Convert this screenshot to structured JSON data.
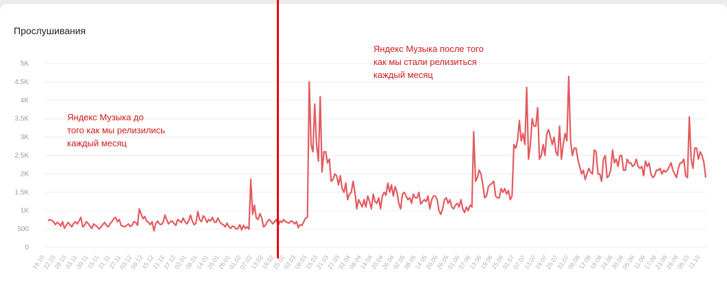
{
  "chart_data": {
    "type": "line",
    "title": "Прослушивания",
    "xlabel": "",
    "ylabel": "",
    "ylim": [
      0,
      5000
    ],
    "y_ticks": [
      0,
      500,
      1000,
      1500,
      2000,
      2500,
      3000,
      3500,
      4000,
      4500,
      5000
    ],
    "y_tick_labels": [
      "0",
      "500",
      "1K",
      "1.5K",
      "2K",
      "2.5K",
      "3K",
      "3.5K",
      "4K",
      "4.5K",
      "5K"
    ],
    "grid": true,
    "x_tick_labels": [
      "16.10",
      "22.10",
      "28.10",
      "03.11",
      "09.11",
      "15.11",
      "21.11",
      "27.11",
      "03.12",
      "09.12",
      "15.12",
      "21.12",
      "27.12",
      "02.01",
      "08.01",
      "14.01",
      "20.01",
      "26.01",
      "01.02",
      "07.02",
      "13.02",
      "19.02",
      "25.02",
      "03.03",
      "09.03",
      "15.03",
      "21.03",
      "27.03",
      "02.04",
      "08.04",
      "14.04",
      "20.04",
      "26.04",
      "02.05",
      "08.05",
      "14.05",
      "20.05",
      "26.05",
      "01.06",
      "07.06",
      "13.06",
      "19.06",
      "25.06",
      "01.07",
      "07.07",
      "13.07",
      "19.07",
      "25.07",
      "31.07",
      "06.08",
      "12.08",
      "18.08",
      "24.08",
      "30.08",
      "05.09",
      "11.09",
      "17.09",
      "23.09",
      "29.09",
      "05.10",
      "11.10"
    ],
    "series": [
      {
        "color": "#e35a5f",
        "values": [
          720,
          760,
          740,
          700,
          620,
          680,
          650,
          580,
          700,
          520,
          600,
          680,
          620,
          560,
          650,
          700,
          640,
          720,
          820,
          560,
          600,
          700,
          650,
          580,
          520,
          640,
          600,
          560,
          500,
          560,
          620,
          680,
          600,
          560,
          650,
          700,
          780,
          820,
          700,
          760,
          600,
          580,
          560,
          600,
          640,
          570,
          600,
          700,
          680,
          600,
          1050,
          900,
          780,
          840,
          720,
          680,
          620,
          700,
          450,
          650,
          720,
          640,
          620,
          680,
          880,
          750,
          640,
          700,
          720,
          650,
          600,
          760,
          720,
          680,
          800,
          700,
          640,
          720,
          880,
          720,
          620,
          660,
          980,
          760,
          700,
          860,
          800,
          680,
          760,
          720,
          820,
          700,
          680,
          800,
          700,
          640,
          620,
          560,
          660,
          560,
          520,
          580,
          560,
          500,
          520,
          620,
          480,
          600,
          520,
          560,
          500,
          1850,
          900,
          1150,
          800,
          760,
          920,
          800,
          560,
          600,
          700,
          760,
          720,
          640,
          700,
          760,
          600,
          720,
          680,
          760,
          700,
          680,
          660,
          720,
          700,
          640,
          700,
          540,
          620,
          600,
          700,
          800,
          820,
          4500,
          2800,
          2600,
          3900,
          2800,
          2350,
          4100,
          2050,
          2600,
          2600,
          2300,
          2400,
          1800,
          1850,
          2000,
          1950,
          1700,
          1950,
          1600,
          1500,
          1750,
          1300,
          1450,
          1500,
          1800,
          1500,
          1050,
          1300,
          1200,
          1100,
          1300,
          1100,
          1400,
          1250,
          1050,
          1450,
          1250,
          1200,
          1350,
          1050,
          1400,
          1500,
          1420,
          1750,
          1500,
          1700,
          1400,
          1650,
          1500,
          1200,
          1050,
          1450,
          1500,
          1400,
          1300,
          1350,
          1200,
          1450,
          1350,
          1350,
          1500,
          1180,
          1250,
          1300,
          1250,
          1400,
          1050,
          1300,
          1400,
          1400,
          1300,
          1000,
          900,
          1050,
          1300,
          1350,
          1200,
          1300,
          1100,
          1050,
          1150,
          1200,
          1100,
          1300,
          1050,
          950,
          1100,
          1000,
          1150,
          1100,
          3150,
          1800,
          1900,
          2100,
          2000,
          1700,
          1350,
          1400,
          1650,
          1700,
          1750,
          1800,
          1400,
          1350,
          1350,
          1600,
          1500,
          1600,
          1450,
          1550,
          1300,
          1400,
          2800,
          2700,
          2900,
          3450,
          2900,
          3100,
          2800,
          4350,
          2400,
          2800,
          3500,
          3300,
          3300,
          3800,
          2400,
          2500,
          2800,
          2500,
          3100,
          3200,
          3000,
          2800,
          3000,
          2600,
          2500,
          3300,
          2400,
          2800,
          3100,
          2900,
          4650,
          2900,
          2500,
          2700,
          2700,
          2400,
          2200,
          2000,
          2100,
          1850,
          2000,
          2150,
          2050,
          2000,
          2650,
          2600,
          2000,
          2000,
          1800,
          2400,
          2500,
          1900,
          1950,
          2100,
          2650,
          2300,
          2400,
          2200,
          2500,
          2500,
          2100,
          2100,
          2400,
          2300,
          2300,
          2200,
          2250,
          2400,
          2200,
          2150,
          2200,
          1950,
          2350,
          2200,
          2300,
          2000,
          1900,
          1950,
          2100,
          2100,
          2150,
          2000,
          2100,
          2050,
          2100,
          2200,
          2300,
          2100,
          2000,
          1900,
          2150,
          2300,
          2300,
          2400,
          1950,
          1900,
          3550,
          2400,
          2150,
          2700,
          2700,
          2400,
          2600,
          2500,
          2300,
          1900
        ]
      }
    ]
  },
  "annotations": [
    {
      "text": "Яндекс Музыка до\nтого как мы релизились\nкаждый месяц"
    },
    {
      "text": "Яндекс Музыка после того\nкак мы стали релизиться\nкаждый месяц"
    }
  ],
  "marker_line": {
    "after_label": "19.02",
    "color": "#e8000b"
  }
}
